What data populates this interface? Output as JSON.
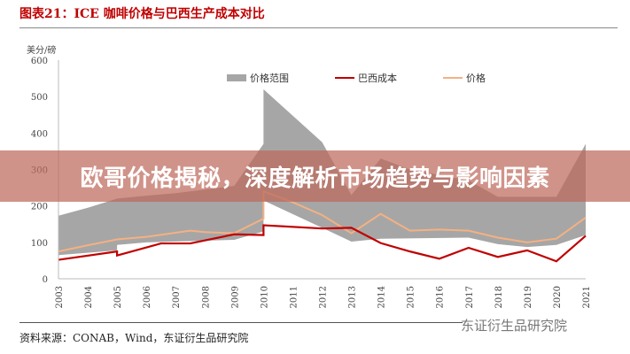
{
  "title": "图表21：ICE 咖啡价格与巴西生产成本对比",
  "source": "资料来源：CONAB，Wind，东证衍生品研究院",
  "watermark": "东证衍生品研究院",
  "banner": "欧哥价格揭秘，深度解析市场趋势与影响因素",
  "chart_data": {
    "type": "area+line",
    "ylabel": "美分/磅",
    "ylim": [
      0,
      600
    ],
    "yticks": [
      0,
      100,
      200,
      300,
      400,
      500,
      600
    ],
    "xticks": [
      "2003",
      "2004",
      "2005",
      "2006",
      "2007",
      "2008",
      "2009",
      "2010",
      "2011",
      "2012",
      "2013",
      "2014",
      "2015",
      "2016",
      "2017",
      "2018",
      "2019",
      "2020",
      "2021"
    ],
    "xlim": [
      2003,
      2021
    ],
    "legend": "top",
    "colors": {
      "range": "#a6a6a6",
      "cost": "#c00000",
      "price": "#f4b183"
    },
    "series": [
      {
        "name": "价格范围",
        "kind": "band",
        "upper": [
          [
            2003,
            173
          ],
          [
            2004,
            195
          ],
          [
            2005,
            220
          ],
          [
            2006,
            228
          ],
          [
            2007,
            235
          ],
          [
            2008,
            245
          ],
          [
            2009,
            255
          ],
          [
            2010,
            370
          ],
          [
            2010,
            520
          ],
          [
            2012,
            375
          ],
          [
            2013,
            230
          ],
          [
            2014,
            330
          ],
          [
            2015,
            300
          ],
          [
            2016,
            285
          ],
          [
            2017,
            270
          ],
          [
            2018,
            225
          ],
          [
            2019,
            225
          ],
          [
            2020,
            225
          ],
          [
            2021,
            370
          ]
        ],
        "lower": [
          [
            2003,
            65
          ],
          [
            2005,
            78
          ],
          [
            2005,
            93
          ],
          [
            2006,
            100
          ],
          [
            2009,
            107
          ],
          [
            2010,
            130
          ],
          [
            2010,
            215
          ],
          [
            2012,
            140
          ],
          [
            2013,
            102
          ],
          [
            2014,
            110
          ],
          [
            2017,
            113
          ],
          [
            2018,
            95
          ],
          [
            2019,
            87
          ],
          [
            2020,
            93
          ],
          [
            2021,
            120
          ]
        ]
      },
      {
        "name": "巴西成本",
        "kind": "line",
        "points": [
          [
            2003,
            52
          ],
          [
            2005,
            75
          ],
          [
            2005,
            64
          ],
          [
            2006.5,
            97
          ],
          [
            2007.5,
            97
          ],
          [
            2009,
            122
          ],
          [
            2010,
            120
          ],
          [
            2010,
            147
          ],
          [
            2012,
            138
          ],
          [
            2013,
            140
          ],
          [
            2014,
            98
          ],
          [
            2015,
            75
          ],
          [
            2016,
            55
          ],
          [
            2017,
            85
          ],
          [
            2018,
            60
          ],
          [
            2019,
            78
          ],
          [
            2020,
            48
          ],
          [
            2021,
            118
          ]
        ]
      },
      {
        "name": "价格",
        "kind": "line",
        "points": [
          [
            2003,
            75
          ],
          [
            2004,
            92
          ],
          [
            2005,
            108
          ],
          [
            2006,
            115
          ],
          [
            2007.5,
            132
          ],
          [
            2008,
            128
          ],
          [
            2009,
            125
          ],
          [
            2010,
            165
          ],
          [
            2010,
            240
          ],
          [
            2011,
            210
          ],
          [
            2012,
            175
          ],
          [
            2013,
            125
          ],
          [
            2014,
            178
          ],
          [
            2015,
            132
          ],
          [
            2016,
            135
          ],
          [
            2017,
            132
          ],
          [
            2018,
            113
          ],
          [
            2019,
            100
          ],
          [
            2020,
            110
          ],
          [
            2021,
            168
          ]
        ]
      }
    ]
  }
}
